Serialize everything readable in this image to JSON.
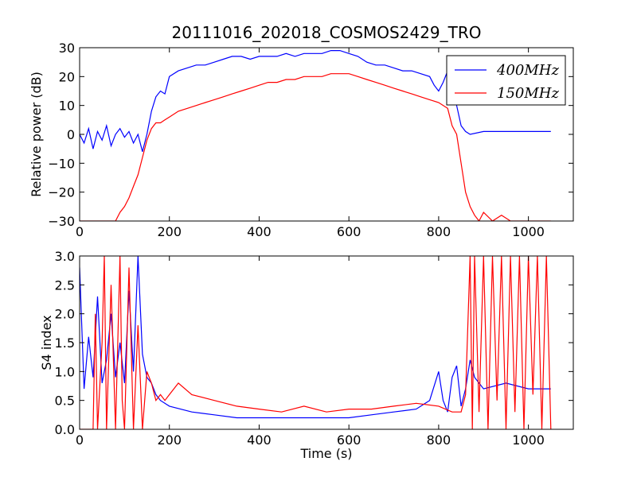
{
  "figure_title": "20111016_202018_COSMOS2429_TRO",
  "colors": {
    "s400": "#0000ff",
    "s150": "#ff0000",
    "axes": "#000000",
    "background": "#ffffff"
  },
  "chart_data": [
    {
      "type": "line",
      "title": "20111016_202018_COSMOS2429_TRO",
      "xlabel": "",
      "ylabel": "Relative power (dB)",
      "xlim": [
        0,
        1100
      ],
      "ylim": [
        -30,
        30
      ],
      "xticks": [
        0,
        200,
        400,
        600,
        800,
        1000
      ],
      "yticks": [
        -30,
        -20,
        -10,
        0,
        10,
        20,
        30
      ],
      "legend": "top-right",
      "series": [
        {
          "name": "400MHz",
          "color": "#0000ff",
          "x": [
            0,
            10,
            20,
            30,
            40,
            50,
            60,
            70,
            80,
            90,
            100,
            110,
            120,
            130,
            140,
            150,
            160,
            170,
            180,
            190,
            200,
            220,
            240,
            260,
            280,
            300,
            320,
            340,
            360,
            380,
            400,
            420,
            440,
            460,
            480,
            500,
            520,
            540,
            560,
            580,
            600,
            620,
            640,
            660,
            680,
            700,
            720,
            740,
            760,
            780,
            790,
            800,
            810,
            820,
            830,
            840,
            850,
            860,
            870,
            900,
            950,
            1000,
            1050
          ],
          "y": [
            0,
            -3,
            2,
            -5,
            1,
            -2,
            3,
            -4,
            0,
            2,
            -1,
            1,
            -3,
            0,
            -6,
            0,
            8,
            13,
            15,
            14,
            20,
            22,
            23,
            24,
            24,
            25,
            26,
            27,
            27,
            26,
            27,
            27,
            27,
            28,
            27,
            28,
            28,
            28,
            29,
            29,
            28,
            27,
            25,
            24,
            24,
            23,
            22,
            22,
            21,
            20,
            17,
            15,
            18,
            22,
            20,
            10,
            3,
            1,
            0,
            1,
            1,
            1,
            1
          ]
        },
        {
          "name": "150MHz",
          "color": "#ff0000",
          "x": [
            0,
            50,
            80,
            90,
            100,
            110,
            120,
            130,
            140,
            150,
            160,
            170,
            180,
            190,
            200,
            220,
            240,
            260,
            280,
            300,
            320,
            340,
            360,
            380,
            400,
            420,
            440,
            460,
            480,
            500,
            520,
            540,
            560,
            580,
            600,
            620,
            640,
            660,
            680,
            700,
            720,
            740,
            760,
            780,
            800,
            820,
            830,
            840,
            850,
            860,
            870,
            880,
            890,
            900,
            920,
            940,
            960,
            1000,
            1050
          ],
          "y": [
            -30,
            -30,
            -30,
            -27,
            -25,
            -22,
            -18,
            -14,
            -8,
            -2,
            2,
            4,
            4,
            5,
            6,
            8,
            9,
            10,
            11,
            12,
            13,
            14,
            15,
            16,
            17,
            18,
            18,
            19,
            19,
            20,
            20,
            20,
            21,
            21,
            21,
            20,
            19,
            18,
            17,
            16,
            15,
            14,
            13,
            12,
            11,
            9,
            3,
            0,
            -10,
            -20,
            -25,
            -28,
            -30,
            -27,
            -30,
            -28,
            -30,
            -30,
            -30
          ]
        }
      ]
    },
    {
      "type": "line",
      "title": "",
      "xlabel": "Time (s)",
      "ylabel": "S4 index",
      "xlim": [
        0,
        1100
      ],
      "ylim": [
        0.0,
        3.0
      ],
      "xticks": [
        0,
        200,
        400,
        600,
        800,
        1000
      ],
      "yticks": [
        0.0,
        0.5,
        1.0,
        1.5,
        2.0,
        2.5,
        3.0
      ],
      "series": [
        {
          "name": "400MHz",
          "color": "#0000ff",
          "x": [
            0,
            10,
            20,
            30,
            40,
            50,
            60,
            70,
            80,
            90,
            100,
            110,
            120,
            130,
            140,
            150,
            160,
            170,
            180,
            200,
            250,
            300,
            350,
            400,
            450,
            500,
            550,
            600,
            650,
            700,
            750,
            780,
            800,
            810,
            820,
            830,
            840,
            850,
            860,
            870,
            880,
            900,
            950,
            1000,
            1050
          ],
          "y": [
            2.8,
            0.7,
            1.6,
            0.9,
            2.3,
            0.8,
            1.2,
            2.0,
            0.9,
            1.5,
            0.8,
            2.4,
            1.0,
            3.0,
            1.3,
            0.9,
            0.8,
            0.6,
            0.5,
            0.4,
            0.3,
            0.25,
            0.2,
            0.2,
            0.2,
            0.2,
            0.2,
            0.2,
            0.25,
            0.3,
            0.35,
            0.5,
            1.0,
            0.5,
            0.3,
            0.9,
            1.1,
            0.4,
            0.7,
            1.2,
            0.9,
            0.7,
            0.8,
            0.7,
            0.7
          ]
        },
        {
          "name": "150MHz",
          "color": "#ff0000",
          "x": [
            0,
            30,
            35,
            40,
            50,
            55,
            60,
            70,
            80,
            90,
            95,
            100,
            110,
            120,
            130,
            140,
            150,
            160,
            170,
            180,
            190,
            200,
            220,
            250,
            300,
            350,
            400,
            450,
            500,
            550,
            600,
            650,
            700,
            750,
            800,
            830,
            850,
            860,
            870,
            875,
            880,
            890,
            900,
            910,
            920,
            930,
            940,
            950,
            960,
            970,
            980,
            990,
            1000,
            1010,
            1020,
            1030,
            1040,
            1050
          ],
          "y": [
            0.0,
            0.0,
            2.0,
            0.0,
            1.5,
            3.0,
            0.0,
            2.5,
            0.0,
            3.0,
            0.5,
            0.0,
            2.8,
            0.0,
            1.8,
            0.0,
            1.0,
            0.8,
            0.5,
            0.6,
            0.5,
            0.6,
            0.8,
            0.6,
            0.5,
            0.4,
            0.35,
            0.3,
            0.4,
            0.3,
            0.35,
            0.35,
            0.4,
            0.45,
            0.4,
            0.3,
            0.3,
            0.6,
            3.0,
            0.0,
            3.0,
            0.3,
            3.0,
            0.0,
            3.0,
            0.5,
            3.0,
            0.0,
            3.0,
            0.3,
            3.0,
            0.0,
            3.0,
            0.6,
            3.0,
            0.0,
            3.0,
            0.0
          ]
        }
      ]
    }
  ]
}
